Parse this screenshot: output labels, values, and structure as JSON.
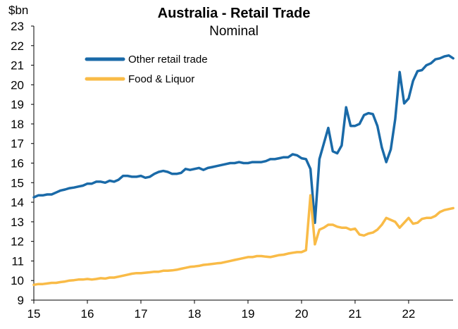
{
  "chart_data": {
    "type": "line",
    "title": "Australia - Retail Trade",
    "subtitle": "Nominal",
    "ylabel": "$bn",
    "xlabel": "",
    "ylim": [
      9,
      23
    ],
    "yticks": [
      "9",
      "10",
      "11",
      "12",
      "13",
      "14",
      "15",
      "16",
      "17",
      "18",
      "19",
      "20",
      "21",
      "22",
      "23"
    ],
    "xlim": [
      15,
      22.83
    ],
    "xticks": [
      "15",
      "16",
      "17",
      "18",
      "19",
      "20",
      "21",
      "22"
    ],
    "grid": false,
    "legend_position": "top-left",
    "colors": {
      "other": "#1a6aa8",
      "food": "#f9bb47",
      "axis": "#000000"
    },
    "series": [
      {
        "name": "Other retail trade",
        "x": [
          15.0,
          15.083,
          15.167,
          15.25,
          15.333,
          15.417,
          15.5,
          15.583,
          15.667,
          15.75,
          15.833,
          15.917,
          16.0,
          16.083,
          16.167,
          16.25,
          16.333,
          16.417,
          16.5,
          16.583,
          16.667,
          16.75,
          16.833,
          16.917,
          17.0,
          17.083,
          17.167,
          17.25,
          17.333,
          17.417,
          17.5,
          17.583,
          17.667,
          17.75,
          17.833,
          17.917,
          18.0,
          18.083,
          18.167,
          18.25,
          18.333,
          18.417,
          18.5,
          18.583,
          18.667,
          18.75,
          18.833,
          18.917,
          19.0,
          19.083,
          19.167,
          19.25,
          19.333,
          19.417,
          19.5,
          19.583,
          19.667,
          19.75,
          19.833,
          19.917,
          20.0,
          20.083,
          20.167,
          20.25,
          20.333,
          20.417,
          20.5,
          20.583,
          20.667,
          20.75,
          20.833,
          20.917,
          21.0,
          21.083,
          21.167,
          21.25,
          21.333,
          21.417,
          21.5,
          21.583,
          21.667,
          21.75,
          21.833,
          21.917,
          22.0,
          22.083,
          22.167,
          22.25,
          22.333,
          22.417,
          22.5,
          22.583,
          22.667,
          22.75,
          22.833
        ],
        "values": [
          14.25,
          14.35,
          14.35,
          14.4,
          14.4,
          14.5,
          14.6,
          14.65,
          14.72,
          14.75,
          14.8,
          14.85,
          14.95,
          14.95,
          15.05,
          15.05,
          15.0,
          15.1,
          15.05,
          15.15,
          15.35,
          15.35,
          15.3,
          15.3,
          15.35,
          15.25,
          15.3,
          15.45,
          15.55,
          15.6,
          15.55,
          15.45,
          15.45,
          15.5,
          15.7,
          15.65,
          15.7,
          15.75,
          15.65,
          15.75,
          15.8,
          15.85,
          15.9,
          15.95,
          16.0,
          16.0,
          16.05,
          16.0,
          16.0,
          16.05,
          16.05,
          16.05,
          16.1,
          16.2,
          16.2,
          16.25,
          16.3,
          16.3,
          16.45,
          16.4,
          16.25,
          16.2,
          15.7,
          12.95,
          16.2,
          17.0,
          17.8,
          16.6,
          16.5,
          16.9,
          18.85,
          17.9,
          17.9,
          18.0,
          18.45,
          18.55,
          18.5,
          17.9,
          16.8,
          16.05,
          16.7,
          18.25,
          20.65,
          19.05,
          19.3,
          20.2,
          20.7,
          20.75,
          21.0,
          21.1,
          21.3,
          21.35,
          21.45,
          21.5,
          21.35
        ]
      },
      {
        "name": "Food & Liquor",
        "x": [
          15.0,
          15.083,
          15.167,
          15.25,
          15.333,
          15.417,
          15.5,
          15.583,
          15.667,
          15.75,
          15.833,
          15.917,
          16.0,
          16.083,
          16.167,
          16.25,
          16.333,
          16.417,
          16.5,
          16.583,
          16.667,
          16.75,
          16.833,
          16.917,
          17.0,
          17.083,
          17.167,
          17.25,
          17.333,
          17.417,
          17.5,
          17.583,
          17.667,
          17.75,
          17.833,
          17.917,
          18.0,
          18.083,
          18.167,
          18.25,
          18.333,
          18.417,
          18.5,
          18.583,
          18.667,
          18.75,
          18.833,
          18.917,
          19.0,
          19.083,
          19.167,
          19.25,
          19.333,
          19.417,
          19.5,
          19.583,
          19.667,
          19.75,
          19.833,
          19.917,
          20.0,
          20.083,
          20.167,
          20.25,
          20.333,
          20.417,
          20.5,
          20.583,
          20.667,
          20.75,
          20.833,
          20.917,
          21.0,
          21.083,
          21.167,
          21.25,
          21.333,
          21.417,
          21.5,
          21.583,
          21.667,
          21.75,
          21.833,
          21.917,
          22.0,
          22.083,
          22.167,
          22.25,
          22.333,
          22.417,
          22.5,
          22.583,
          22.667,
          22.75,
          22.833
        ],
        "values": [
          9.78,
          9.82,
          9.82,
          9.85,
          9.88,
          9.88,
          9.92,
          9.95,
          10.0,
          10.02,
          10.05,
          10.05,
          10.08,
          10.05,
          10.08,
          10.12,
          10.1,
          10.15,
          10.15,
          10.2,
          10.25,
          10.3,
          10.35,
          10.38,
          10.38,
          10.4,
          10.42,
          10.45,
          10.45,
          10.5,
          10.5,
          10.52,
          10.55,
          10.6,
          10.65,
          10.7,
          10.72,
          10.75,
          10.8,
          10.82,
          10.85,
          10.88,
          10.9,
          10.95,
          11.0,
          11.05,
          11.1,
          11.15,
          11.2,
          11.2,
          11.25,
          11.25,
          11.22,
          11.2,
          11.25,
          11.3,
          11.32,
          11.38,
          11.42,
          11.45,
          11.45,
          11.55,
          14.35,
          11.85,
          12.6,
          12.7,
          12.85,
          12.85,
          12.75,
          12.7,
          12.7,
          12.6,
          12.65,
          12.35,
          12.3,
          12.4,
          12.45,
          12.6,
          12.85,
          13.2,
          13.1,
          13.0,
          12.7,
          12.95,
          13.2,
          12.9,
          12.95,
          13.15,
          13.2,
          13.2,
          13.3,
          13.5,
          13.6,
          13.65,
          13.7
        ]
      }
    ]
  }
}
